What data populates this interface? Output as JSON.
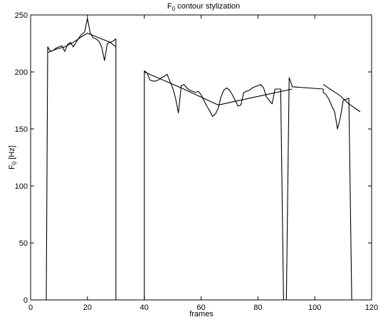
{
  "chart_data": {
    "type": "line",
    "title": "F",
    "title_sub": "0",
    "title_rest": " contour stylization",
    "xlabel": "frames",
    "ylabel": "F",
    "ylabel_sub": "0",
    "ylabel_rest": " [Hz]",
    "xlim": [
      0,
      120
    ],
    "ylim": [
      0,
      250
    ],
    "xticks": [
      0,
      20,
      40,
      60,
      80,
      100,
      120
    ],
    "yticks": [
      0,
      50,
      100,
      150,
      200,
      250
    ],
    "grid": false,
    "series": [
      {
        "x": [
          0,
          5,
          5.5,
          6,
          7,
          8,
          9,
          10,
          11,
          12,
          13,
          14,
          15,
          16,
          17,
          18,
          19,
          20,
          21,
          22,
          23,
          24,
          25,
          26,
          27,
          28,
          29,
          30,
          30,
          40,
          40,
          41,
          42,
          43,
          44,
          45,
          46,
          47,
          48,
          49,
          50,
          51,
          52,
          53,
          54,
          55,
          56,
          57,
          58,
          59,
          60,
          61,
          62,
          63,
          64,
          65,
          66,
          67,
          68,
          69,
          70,
          71,
          72,
          73,
          74,
          75,
          76,
          77,
          78,
          79,
          80,
          81,
          82,
          83,
          84,
          85,
          86,
          87,
          88,
          89,
          90,
          91,
          92,
          92,
          103,
          103,
          104,
          105,
          106,
          107,
          108,
          109,
          110,
          111,
          112,
          113,
          114,
          115,
          116,
          117,
          118,
          118,
          120
        ],
        "values": [
          0,
          0,
          0,
          222,
          218,
          219,
          221,
          222,
          223,
          218,
          224,
          226,
          222,
          226,
          230,
          233,
          235,
          247,
          234,
          230,
          229,
          227,
          222,
          210,
          225,
          226,
          227,
          229,
          0,
          0,
          201,
          199,
          193,
          192,
          192,
          193,
          195,
          196,
          198,
          192,
          186,
          177,
          164,
          188,
          189,
          186,
          184,
          183,
          182,
          183,
          180,
          175,
          170,
          166,
          161,
          163,
          168,
          178,
          184,
          186,
          184,
          180,
          175,
          170,
          171,
          182,
          183,
          184,
          186,
          187,
          188,
          189,
          186,
          178,
          175,
          172,
          185,
          185,
          185,
          0,
          0,
          195,
          188,
          187,
          185,
          182,
          180,
          176,
          170,
          165,
          150,
          160,
          175,
          176,
          177,
          0,
          0,
          0,
          0,
          0,
          0,
          0,
          0
        ]
      },
      {
        "x": [
          6,
          9,
          12,
          15,
          18,
          20,
          22,
          25,
          28,
          30
        ],
        "values": [
          217,
          220,
          222,
          226,
          231,
          234,
          232,
          229,
          226,
          222
        ]
      },
      {
        "x": [
          40,
          53,
          66,
          79,
          92
        ],
        "values": [
          200,
          186,
          171,
          178,
          185
        ]
      },
      {
        "x": [
          103,
          106,
          109,
          112,
          116
        ],
        "values": [
          189,
          184,
          179,
          172,
          165
        ]
      }
    ]
  }
}
